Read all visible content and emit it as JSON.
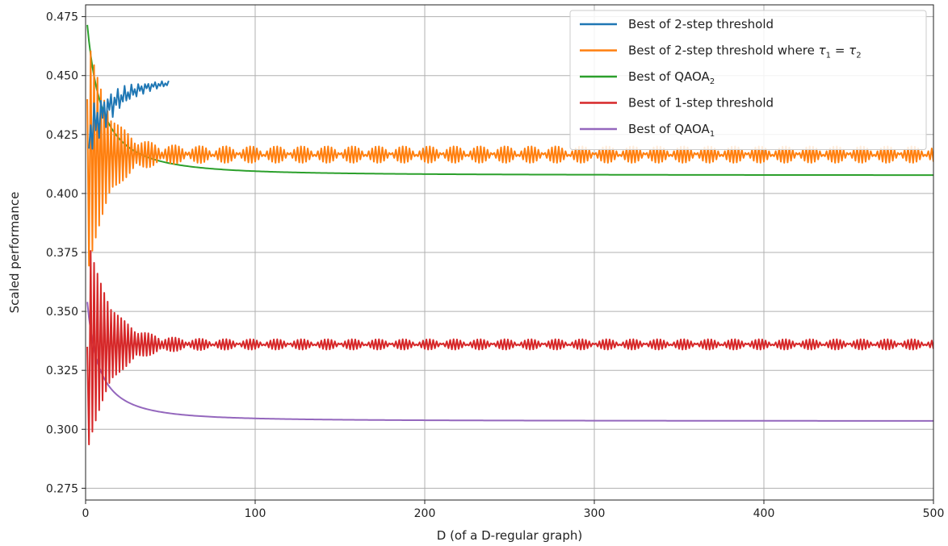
{
  "chart_data": {
    "type": "line",
    "title": "",
    "xlabel": "D (of a D-regular graph)",
    "ylabel": "Scaled performance",
    "xlim": [
      0,
      500
    ],
    "ylim": [
      0.27,
      0.48
    ],
    "xticks": [
      0,
      100,
      200,
      300,
      400,
      500
    ],
    "yticks": [
      0.275,
      0.3,
      0.325,
      0.35,
      0.375,
      0.4,
      0.425,
      0.45,
      0.475
    ],
    "xtick_labels": [
      "0",
      "100",
      "200",
      "300",
      "400",
      "500"
    ],
    "ytick_labels": [
      "0.275",
      "0.300",
      "0.325",
      "0.350",
      "0.375",
      "0.400",
      "0.425",
      "0.450",
      "0.475"
    ],
    "grid": true,
    "legend_position": "top-right",
    "series": [
      {
        "name": "Best of 2-step threshold",
        "color": "#1f77b4",
        "x_range": [
          2,
          49
        ],
        "start": 0.425,
        "plateau": 0.448,
        "rise_rate": 0.06,
        "initial_oscillation": 0.012,
        "oscillation_decay": 0.05
      },
      {
        "name_main": "Best of 2-step threshold where ",
        "name_tau_1": "τ",
        "name_sub_1": "1",
        "name_eq": " = ",
        "name_tau_2": "τ",
        "name_sub_2": "2",
        "color": "#ff7f0e",
        "x_range": [
          1,
          500
        ],
        "start": 0.44,
        "plateau": 0.4165,
        "initial_oscillation": 0.05,
        "oscillation_decay": 0.09,
        "residual_oscillation": 0.0035
      },
      {
        "name_main": "Best of QAOA",
        "name_sub": "2",
        "color": "#2ca02c",
        "x_range": [
          1,
          500
        ],
        "start": 0.4715,
        "plateau": 0.4077,
        "decay_rate": 0.12
      },
      {
        "name": "Best of 1-step threshold",
        "color": "#d62728",
        "x_range": [
          1,
          500
        ],
        "start": 0.335,
        "plateau": 0.336,
        "initial_oscillation": 0.045,
        "oscillation_decay": 0.08,
        "residual_oscillation": 0.0022
      },
      {
        "name_main": "Best of QAOA",
        "name_sub": "1",
        "color": "#9467bd",
        "x_range": [
          1,
          500
        ],
        "start": 0.354,
        "plateau": 0.3035,
        "decay_rate": 0.15
      }
    ]
  }
}
